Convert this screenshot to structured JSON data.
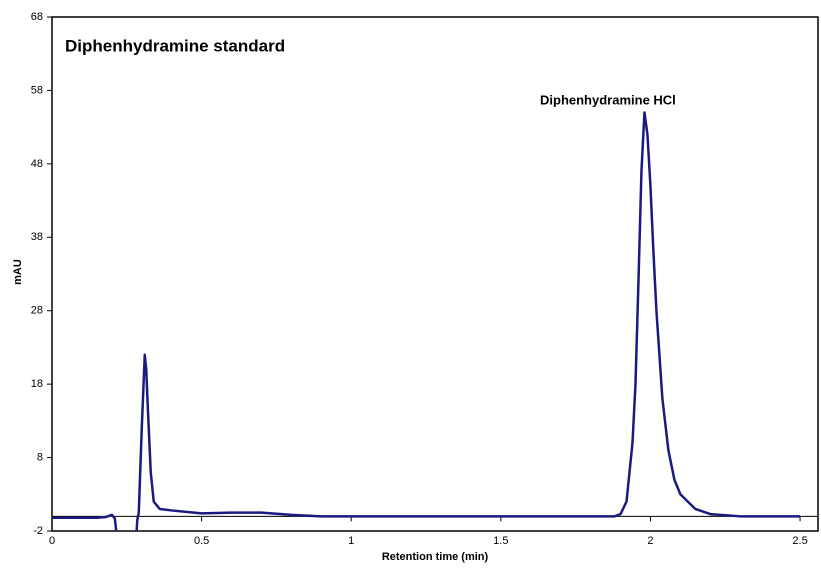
{
  "chart_data": {
    "type": "line",
    "title": "Diphenhydramine standard",
    "annotation": "Diphenhydramine HCl",
    "x_label": "Retention time (min)",
    "y_label": "mAU",
    "xlim": [
      0,
      2.56
    ],
    "ylim": [
      -2,
      68
    ],
    "xticks": [
      0,
      0.5,
      1,
      1.5,
      2,
      2.5
    ],
    "yticks": [
      -2,
      8,
      18,
      28,
      38,
      48,
      58,
      68
    ],
    "x": [
      0,
      0.05,
      0.1,
      0.15,
      0.18,
      0.2,
      0.21,
      0.22,
      0.25,
      0.28,
      0.285,
      0.29,
      0.3,
      0.31,
      0.315,
      0.32,
      0.33,
      0.34,
      0.36,
      0.4,
      0.5,
      0.6,
      0.7,
      0.8,
      0.9,
      1.0,
      1.2,
      1.4,
      1.6,
      1.8,
      1.88,
      1.9,
      1.92,
      1.94,
      1.95,
      1.96,
      1.97,
      1.98,
      1.99,
      2.0,
      2.01,
      2.02,
      2.04,
      2.06,
      2.08,
      2.1,
      2.15,
      2.2,
      2.3,
      2.4,
      2.5
    ],
    "series": [
      {
        "name": "mAU",
        "color": "#1a1a80",
        "values": [
          -0.2,
          -0.2,
          -0.2,
          -0.2,
          -0.1,
          0.2,
          -0.3,
          -4,
          -4,
          -4,
          -0.5,
          0.5,
          12,
          22,
          20,
          15,
          6,
          2,
          1,
          0.8,
          0.4,
          0.5,
          0.5,
          0.2,
          0,
          0,
          0,
          0,
          0,
          0,
          0,
          0.3,
          2,
          10,
          18,
          32,
          47,
          55,
          52,
          45,
          36,
          28,
          16,
          9,
          5,
          3,
          1,
          0.3,
          0,
          0,
          0
        ]
      }
    ],
    "zero_line": true
  }
}
